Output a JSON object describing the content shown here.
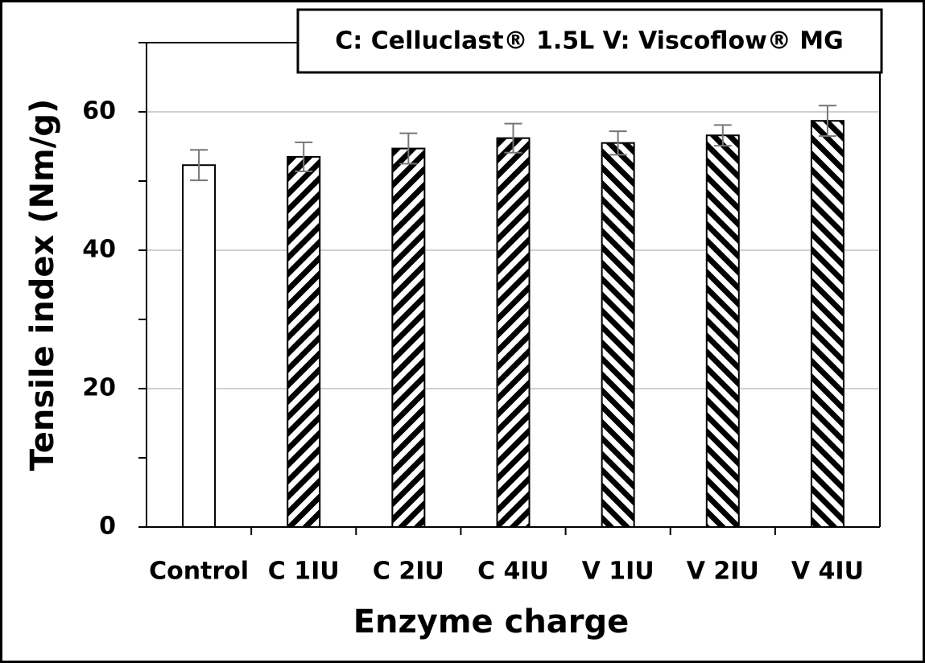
{
  "chart_data": {
    "type": "bar",
    "annotation": "C: Celluclast® 1.5L   V: Viscoflow® MG",
    "xlabel": "Enzyme charge",
    "ylabel": "Tensile index (Nm/g)",
    "categories": [
      "Control",
      "C 1IU",
      "C 2IU",
      "C 4IU",
      "V 1IU",
      "V 2IU",
      "V 4IU"
    ],
    "values": [
      52.3,
      53.5,
      54.7,
      56.2,
      55.5,
      56.6,
      58.7
    ],
    "errors": [
      2.2,
      2.1,
      2.2,
      2.1,
      1.7,
      1.5,
      2.2
    ],
    "hatch": [
      "none",
      "forward",
      "forward",
      "forward",
      "backward",
      "backward",
      "backward"
    ],
    "color": "#000000",
    "error_color": "#777777",
    "ylim": [
      0,
      70
    ],
    "yticks": [
      0,
      20,
      40,
      60
    ],
    "yminorticks": [
      10,
      30,
      50,
      70
    ],
    "grid": true
  }
}
